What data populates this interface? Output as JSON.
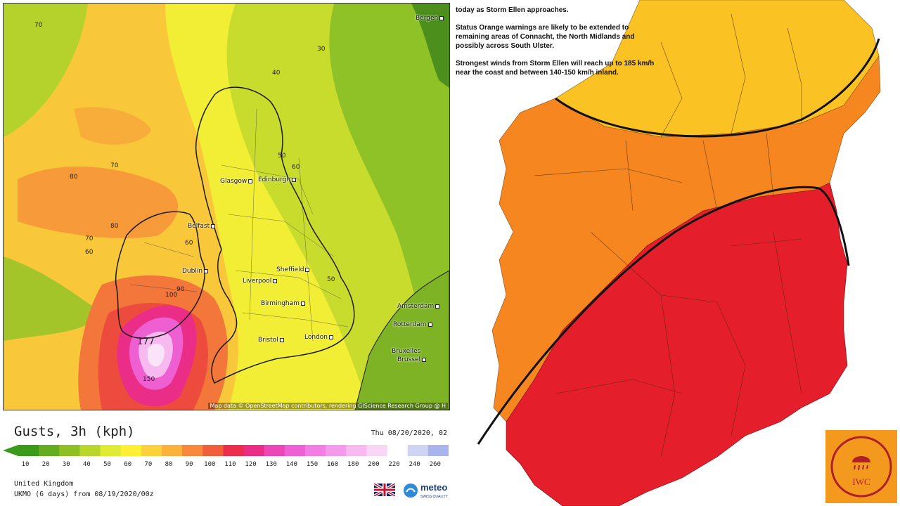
{
  "left_map": {
    "cities": [
      {
        "name": "Bergen"
      },
      {
        "name": "Glasgow"
      },
      {
        "name": "Edinburgh"
      },
      {
        "name": "Belfast"
      },
      {
        "name": "Dublin"
      },
      {
        "name": "Sheffield"
      },
      {
        "name": "Liverpool"
      },
      {
        "name": "Birmingham"
      },
      {
        "name": "Bristol"
      },
      {
        "name": "London"
      },
      {
        "name": "Amsterdam"
      },
      {
        "name": "Rotterdam"
      },
      {
        "name": "Bruxelles"
      },
      {
        "name": "Brussel"
      }
    ],
    "contour_labels": [
      "70",
      "30",
      "40",
      "70",
      "80",
      "50",
      "60",
      "80",
      "70",
      "60",
      "60",
      "50",
      "90",
      "100",
      "177",
      "150"
    ],
    "attribution": "Map data © OpenStreetMap contributors, rendering GIScience Research Group @ H"
  },
  "legend": {
    "title": "Gusts, 3h (kph)",
    "date": "Thu 08/20/2020, 02",
    "ticks": [
      "10",
      "20",
      "30",
      "40",
      "50",
      "60",
      "70",
      "80",
      "90",
      "100",
      "110",
      "120",
      "130",
      "140",
      "150",
      "160",
      "180",
      "200",
      "220",
      "240",
      "260"
    ],
    "colors": [
      "#3c9a1a",
      "#63ad1e",
      "#8cc023",
      "#b8d62b",
      "#e2eb33",
      "#fff035",
      "#fdd13a",
      "#fbb13a",
      "#f8893a",
      "#f15e3a",
      "#ec2d4b",
      "#ea2d86",
      "#ec47b7",
      "#ee60d6",
      "#f27ee3",
      "#f49aea",
      "#f7b9f0",
      "#fad6f6",
      "#ffffff",
      "#cfd4f3",
      "#a9b3ec"
    ],
    "region": "United Kingdom",
    "model": "UKMO (6 days) from 08/19/2020/00z",
    "brand": "meteo",
    "brand_sub": "SWISS QUALITY"
  },
  "warning": {
    "line1": "today as Storm Ellen approaches.",
    "line2": "Status Orange warnings are likely to be extended to remaining areas of Connacht, the North Midlands and possibly across South Ulster.",
    "line3": "Strongest winds from Storm Ellen will reach up to 185 km/h near the coast and between 140-150 km/h inland.",
    "zone_colors": {
      "yellow": "#fbc223",
      "orange": "#f6861f",
      "red": "#e41e2b"
    }
  },
  "logo": {
    "text": "IWC"
  }
}
